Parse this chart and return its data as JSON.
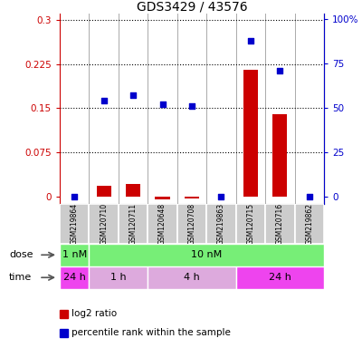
{
  "title": "GDS3429 / 43576",
  "samples": [
    "GSM219864",
    "GSM120710",
    "GSM120711",
    "GSM120648",
    "GSM120708",
    "GSM219863",
    "GSM120715",
    "GSM120716",
    "GSM219862"
  ],
  "log2_ratio": [
    0.0,
    0.018,
    0.022,
    -0.005,
    -0.003,
    0.0,
    0.215,
    0.14,
    0.0
  ],
  "percentile_rank_pct": [
    0.0,
    54.0,
    57.0,
    52.0,
    51.0,
    0.0,
    88.0,
    71.0,
    0.0
  ],
  "left_yticks": [
    0,
    0.075,
    0.15,
    0.225,
    0.3
  ],
  "right_yticks": [
    0,
    25,
    50,
    75,
    100
  ],
  "left_ycolor": "#cc0000",
  "right_ycolor": "#0000cc",
  "bar_color": "#cc0000",
  "dot_color": "#0000cc",
  "ylim_left": [
    -0.012,
    0.31
  ],
  "ylim_right": [
    -4.0,
    103.0
  ],
  "dose_segments": [
    [
      "1 nM",
      0,
      1,
      "#77ee77"
    ],
    [
      "10 nM",
      1,
      9,
      "#77ee77"
    ]
  ],
  "time_segments": [
    [
      "24 h",
      0,
      1,
      "#ee44ee"
    ],
    [
      "1 h",
      1,
      3,
      "#ddaadd"
    ],
    [
      "4 h",
      3,
      6,
      "#ddaadd"
    ],
    [
      "24 h",
      6,
      9,
      "#ee44ee"
    ]
  ],
  "legend_items": [
    [
      "log2 ratio",
      "#cc0000"
    ],
    [
      "percentile rank within the sample",
      "#0000cc"
    ]
  ],
  "sample_bg": "#cccccc",
  "sample_border": "#ffffff",
  "grid_yticks": [
    0.075,
    0.15,
    0.225,
    0.3
  ]
}
